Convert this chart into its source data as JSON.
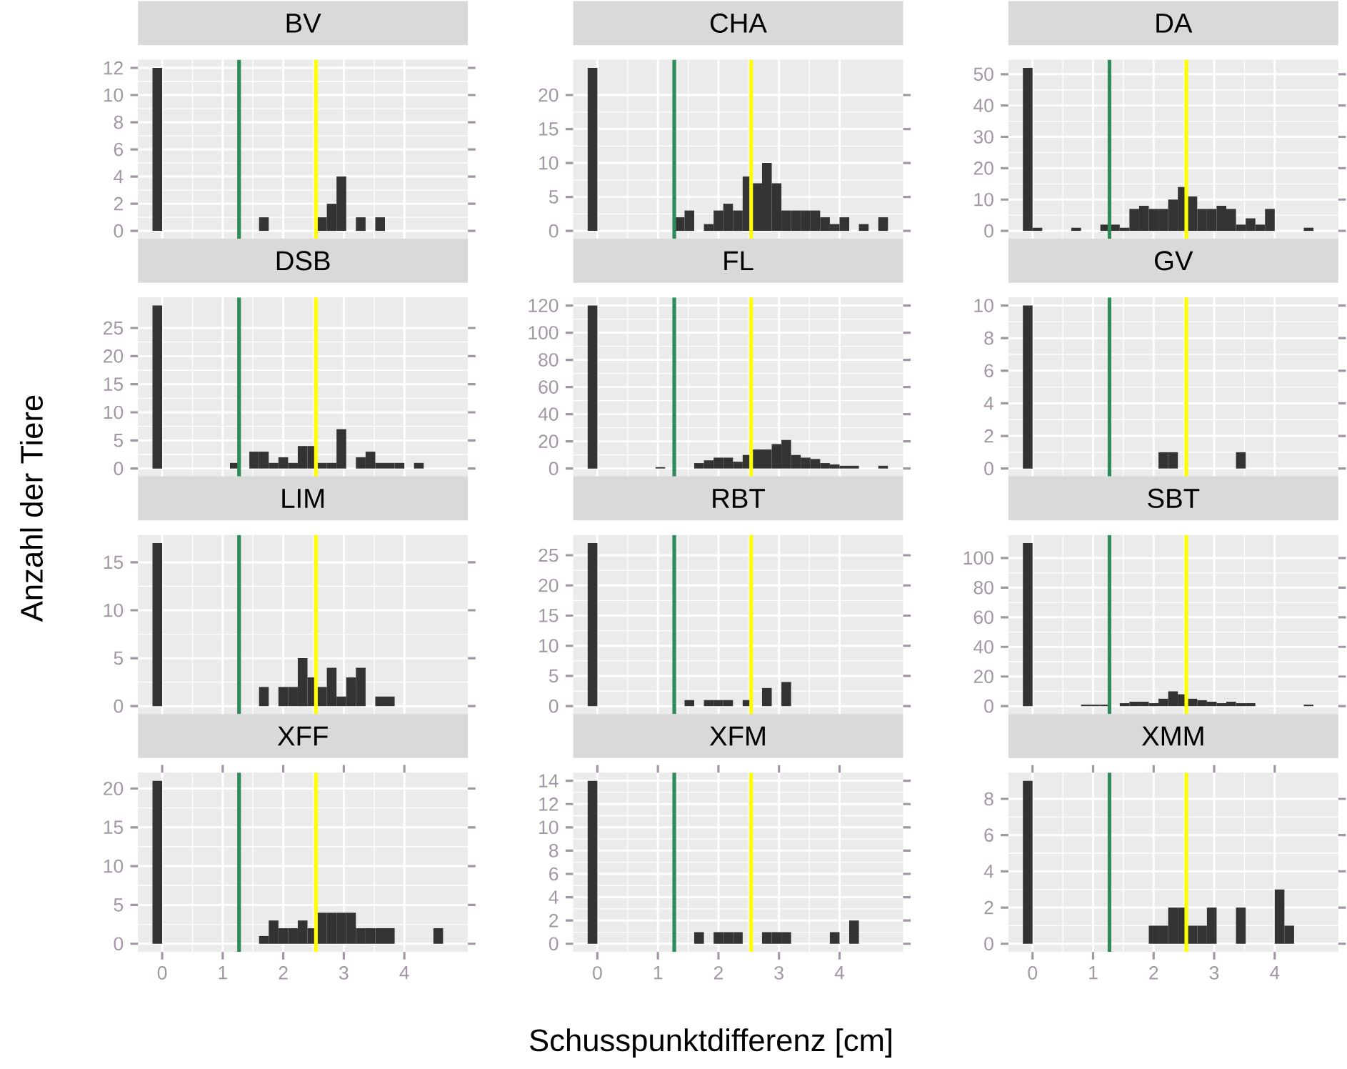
{
  "chart_data": [
    {
      "type": "histogram",
      "title": "BV",
      "bins": [
        -0.16,
        0,
        0.16,
        0.32,
        0.48,
        0.64,
        0.8,
        0.96,
        1.12,
        1.28,
        1.44,
        1.6,
        1.76,
        1.92,
        2.08,
        2.24,
        2.4,
        2.56,
        2.72,
        2.88,
        3.04,
        3.2,
        3.36,
        3.52,
        3.68,
        3.84,
        4,
        4.16,
        4.32,
        4.48,
        4.64,
        4.8
      ],
      "values": [
        12,
        0,
        0,
        0,
        0,
        0,
        0,
        0,
        0,
        0,
        0,
        1,
        0,
        0,
        0,
        0,
        0,
        1,
        2,
        4,
        0,
        1,
        0,
        1,
        0,
        0,
        0,
        0,
        0,
        0,
        0
      ],
      "color": "#333333",
      "xlim": [
        -0.4,
        5.05
      ],
      "ylim": [
        -0.6,
        12.6
      ],
      "xticks": [
        0,
        1,
        2,
        3,
        4
      ],
      "yticks": [
        0,
        2,
        4,
        6,
        8,
        10,
        12
      ],
      "grid": true,
      "tick_labels": "y",
      "ref_lines": [
        {
          "axis": "x",
          "value": 1.27,
          "color": "#2e8b57"
        },
        {
          "axis": "x",
          "value": 2.54,
          "color": "#ffff00"
        }
      ]
    },
    {
      "type": "histogram",
      "title": "CHA",
      "bins": [
        -0.16,
        0,
        0.16,
        0.32,
        0.48,
        0.64,
        0.8,
        0.96,
        1.12,
        1.28,
        1.44,
        1.6,
        1.76,
        1.92,
        2.08,
        2.24,
        2.4,
        2.56,
        2.72,
        2.88,
        3.04,
        3.2,
        3.36,
        3.52,
        3.68,
        3.84,
        4,
        4.16,
        4.32,
        4.48,
        4.64,
        4.8
      ],
      "values": [
        24,
        0,
        0,
        0,
        0,
        0,
        0,
        0,
        0,
        2,
        3,
        0,
        1,
        3,
        4,
        3,
        8,
        7,
        10,
        7,
        3,
        3,
        3,
        3,
        2,
        1,
        2,
        0,
        1,
        0,
        2
      ],
      "color": "#333333",
      "xlim": [
        -0.4,
        5.05
      ],
      "ylim": [
        -1.2,
        25.2
      ],
      "xticks": [
        0,
        1,
        2,
        3,
        4
      ],
      "yticks": [
        0,
        5,
        10,
        15,
        20
      ],
      "grid": true,
      "tick_labels": "y",
      "ref_lines": [
        {
          "axis": "x",
          "value": 1.27,
          "color": "#2e8b57"
        },
        {
          "axis": "x",
          "value": 2.54,
          "color": "#ffff00"
        }
      ]
    },
    {
      "type": "histogram",
      "title": "DA",
      "bins": [
        -0.16,
        0,
        0.16,
        0.32,
        0.48,
        0.64,
        0.8,
        0.96,
        1.12,
        1.28,
        1.44,
        1.6,
        1.76,
        1.92,
        2.08,
        2.24,
        2.4,
        2.56,
        2.72,
        2.88,
        3.04,
        3.2,
        3.36,
        3.52,
        3.68,
        3.84,
        4,
        4.16,
        4.32,
        4.48,
        4.64,
        4.8
      ],
      "values": [
        52,
        1,
        0,
        0,
        0,
        1,
        0,
        0,
        2,
        2,
        1,
        7,
        8,
        7,
        7,
        10,
        14,
        11,
        7,
        7,
        8,
        7,
        2,
        4,
        2,
        7,
        0,
        0,
        0,
        1,
        0
      ],
      "color": "#333333",
      "xlim": [
        -0.4,
        5.05
      ],
      "ylim": [
        -2.6,
        54.6
      ],
      "xticks": [
        0,
        1,
        2,
        3,
        4
      ],
      "yticks": [
        0,
        10,
        20,
        30,
        40,
        50
      ],
      "grid": true,
      "tick_labels": "y",
      "ref_lines": [
        {
          "axis": "x",
          "value": 1.27,
          "color": "#2e8b57"
        },
        {
          "axis": "x",
          "value": 2.54,
          "color": "#ffff00"
        }
      ]
    },
    {
      "type": "histogram",
      "title": "DSB",
      "ylabel": "Anzahl der Tiere",
      "bins": [
        -0.16,
        0,
        0.16,
        0.32,
        0.48,
        0.64,
        0.8,
        0.96,
        1.12,
        1.28,
        1.44,
        1.6,
        1.76,
        1.92,
        2.08,
        2.24,
        2.4,
        2.56,
        2.72,
        2.88,
        3.04,
        3.2,
        3.36,
        3.52,
        3.68,
        3.84,
        4,
        4.16,
        4.32,
        4.48,
        4.64,
        4.8
      ],
      "values": [
        29,
        0,
        0,
        0,
        0,
        0,
        0,
        0,
        1,
        0,
        3,
        3,
        1,
        2,
        1,
        4,
        4,
        1,
        1,
        7,
        0,
        2,
        3,
        1,
        1,
        1,
        0,
        1,
        0,
        0,
        0
      ],
      "color": "#333333",
      "xlim": [
        -0.4,
        5.05
      ],
      "ylim": [
        -1.45,
        30.45
      ],
      "xticks": [
        0,
        1,
        2,
        3,
        4
      ],
      "yticks": [
        0,
        5,
        10,
        15,
        20,
        25
      ],
      "grid": true,
      "tick_labels": "y",
      "ref_lines": [
        {
          "axis": "x",
          "value": 1.27,
          "color": "#2e8b57"
        },
        {
          "axis": "x",
          "value": 2.54,
          "color": "#ffff00"
        }
      ]
    },
    {
      "type": "histogram",
      "title": "FL",
      "bins": [
        -0.16,
        0,
        0.16,
        0.32,
        0.48,
        0.64,
        0.8,
        0.96,
        1.12,
        1.28,
        1.44,
        1.6,
        1.76,
        1.92,
        2.08,
        2.24,
        2.4,
        2.56,
        2.72,
        2.88,
        3.04,
        3.2,
        3.36,
        3.52,
        3.68,
        3.84,
        4,
        4.16,
        4.32,
        4.48,
        4.64,
        4.8
      ],
      "values": [
        120,
        0,
        0,
        0,
        0,
        0,
        0,
        1,
        0,
        0,
        0,
        4,
        6,
        8,
        8,
        5,
        10,
        14,
        14,
        18,
        21,
        10,
        8,
        7,
        4,
        3,
        2,
        2,
        0,
        0,
        2
      ],
      "color": "#333333",
      "xlim": [
        -0.4,
        5.05
      ],
      "ylim": [
        -6,
        126
      ],
      "xticks": [
        0,
        1,
        2,
        3,
        4
      ],
      "yticks": [
        0,
        20,
        40,
        60,
        80,
        100,
        120
      ],
      "grid": true,
      "tick_labels": "y",
      "ref_lines": [
        {
          "axis": "x",
          "value": 1.27,
          "color": "#2e8b57"
        },
        {
          "axis": "x",
          "value": 2.54,
          "color": "#ffff00"
        }
      ]
    },
    {
      "type": "histogram",
      "title": "GV",
      "bins": [
        -0.16,
        0,
        0.16,
        0.32,
        0.48,
        0.64,
        0.8,
        0.96,
        1.12,
        1.28,
        1.44,
        1.6,
        1.76,
        1.92,
        2.08,
        2.24,
        2.4,
        2.56,
        2.72,
        2.88,
        3.04,
        3.2,
        3.36,
        3.52,
        3.68,
        3.84,
        4,
        4.16,
        4.32,
        4.48,
        4.64,
        4.8
      ],
      "values": [
        10,
        0,
        0,
        0,
        0,
        0,
        0,
        0,
        0,
        0,
        0,
        0,
        0,
        0,
        1,
        1,
        0,
        0,
        0,
        0,
        0,
        0,
        1,
        0,
        0,
        0,
        0,
        0,
        0,
        0,
        0
      ],
      "color": "#333333",
      "xlim": [
        -0.4,
        5.05
      ],
      "ylim": [
        -0.5,
        10.5
      ],
      "xticks": [
        0,
        1,
        2,
        3,
        4
      ],
      "yticks": [
        0,
        2,
        4,
        6,
        8,
        10
      ],
      "grid": true,
      "tick_labels": "y",
      "ref_lines": [
        {
          "axis": "x",
          "value": 1.27,
          "color": "#2e8b57"
        },
        {
          "axis": "x",
          "value": 2.54,
          "color": "#ffff00"
        }
      ]
    },
    {
      "type": "histogram",
      "title": "LIM",
      "bins": [
        -0.16,
        0,
        0.16,
        0.32,
        0.48,
        0.64,
        0.8,
        0.96,
        1.12,
        1.28,
        1.44,
        1.6,
        1.76,
        1.92,
        2.08,
        2.24,
        2.4,
        2.56,
        2.72,
        2.88,
        3.04,
        3.2,
        3.36,
        3.52,
        3.68,
        3.84,
        4,
        4.16,
        4.32,
        4.48,
        4.64,
        4.8
      ],
      "values": [
        17,
        0,
        0,
        0,
        0,
        0,
        0,
        0,
        0,
        0,
        0,
        2,
        0,
        2,
        2,
        5,
        3,
        2,
        4,
        1,
        3,
        4,
        0,
        1,
        1,
        0,
        0,
        0,
        0,
        0,
        0
      ],
      "color": "#333333",
      "xlim": [
        -0.4,
        5.05
      ],
      "ylim": [
        -0.85,
        17.85
      ],
      "xticks": [
        0,
        1,
        2,
        3,
        4
      ],
      "yticks": [
        0,
        5,
        10,
        15
      ],
      "grid": true,
      "tick_labels": "y",
      "ref_lines": [
        {
          "axis": "x",
          "value": 1.27,
          "color": "#2e8b57"
        },
        {
          "axis": "x",
          "value": 2.54,
          "color": "#ffff00"
        }
      ]
    },
    {
      "type": "histogram",
      "title": "RBT",
      "bins": [
        -0.16,
        0,
        0.16,
        0.32,
        0.48,
        0.64,
        0.8,
        0.96,
        1.12,
        1.28,
        1.44,
        1.6,
        1.76,
        1.92,
        2.08,
        2.24,
        2.4,
        2.56,
        2.72,
        2.88,
        3.04,
        3.2,
        3.36,
        3.52,
        3.68,
        3.84,
        4,
        4.16,
        4.32,
        4.48,
        4.64,
        4.8
      ],
      "values": [
        27,
        0,
        0,
        0,
        0,
        0,
        0,
        0,
        0,
        0,
        1,
        0,
        1,
        1,
        1,
        0,
        1,
        0,
        3,
        0,
        4,
        0,
        0,
        0,
        0,
        0,
        0,
        0,
        0,
        0,
        0
      ],
      "color": "#333333",
      "xlim": [
        -0.4,
        5.05
      ],
      "ylim": [
        -1.35,
        28.35
      ],
      "xticks": [
        0,
        1,
        2,
        3,
        4
      ],
      "yticks": [
        0,
        5,
        10,
        15,
        20,
        25
      ],
      "grid": true,
      "tick_labels": "y",
      "ref_lines": [
        {
          "axis": "x",
          "value": 1.27,
          "color": "#2e8b57"
        },
        {
          "axis": "x",
          "value": 2.54,
          "color": "#ffff00"
        }
      ]
    },
    {
      "type": "histogram",
      "title": "SBT",
      "bins": [
        -0.16,
        0,
        0.16,
        0.32,
        0.48,
        0.64,
        0.8,
        0.96,
        1.12,
        1.28,
        1.44,
        1.6,
        1.76,
        1.92,
        2.08,
        2.24,
        2.4,
        2.56,
        2.72,
        2.88,
        3.04,
        3.2,
        3.36,
        3.52,
        3.68,
        3.84,
        4,
        4.16,
        4.32,
        4.48,
        4.64,
        4.8
      ],
      "values": [
        110,
        0,
        0,
        0,
        0,
        0,
        1,
        1,
        1,
        0,
        2,
        3,
        3,
        2,
        5,
        10,
        8,
        5,
        4,
        3,
        2,
        3,
        2,
        2,
        0,
        0,
        0,
        0,
        0,
        1,
        0
      ],
      "color": "#333333",
      "xlim": [
        -0.4,
        5.05
      ],
      "ylim": [
        -5.5,
        115.5
      ],
      "xticks": [
        0,
        1,
        2,
        3,
        4
      ],
      "yticks": [
        0,
        20,
        40,
        60,
        80,
        100
      ],
      "grid": true,
      "tick_labels": "y",
      "ref_lines": [
        {
          "axis": "x",
          "value": 1.27,
          "color": "#2e8b57"
        },
        {
          "axis": "x",
          "value": 2.54,
          "color": "#ffff00"
        }
      ]
    },
    {
      "type": "histogram",
      "title": "XFF",
      "bins": [
        -0.16,
        0,
        0.16,
        0.32,
        0.48,
        0.64,
        0.8,
        0.96,
        1.12,
        1.28,
        1.44,
        1.6,
        1.76,
        1.92,
        2.08,
        2.24,
        2.4,
        2.56,
        2.72,
        2.88,
        3.04,
        3.2,
        3.36,
        3.52,
        3.68,
        3.84,
        4,
        4.16,
        4.32,
        4.48,
        4.64,
        4.8
      ],
      "values": [
        21,
        0,
        0,
        0,
        0,
        0,
        0,
        0,
        0,
        0,
        0,
        1,
        3,
        2,
        2,
        3,
        2,
        4,
        4,
        4,
        4,
        2,
        2,
        2,
        2,
        0,
        0,
        0,
        0,
        2,
        0
      ],
      "color": "#333333",
      "xlim": [
        -0.4,
        5.05
      ],
      "ylim": [
        -1.05,
        22.05
      ],
      "xticks": [
        0,
        1,
        2,
        3,
        4
      ],
      "yticks": [
        0,
        5,
        10,
        15,
        20
      ],
      "grid": true,
      "ref_lines": [
        {
          "axis": "x",
          "value": 1.27,
          "color": "#2e8b57"
        },
        {
          "axis": "x",
          "value": 2.54,
          "color": "#ffff00"
        }
      ]
    },
    {
      "type": "histogram",
      "title": "XFM",
      "xlabel": "Schusspunktdifferenz [cm]",
      "bins": [
        -0.16,
        0,
        0.16,
        0.32,
        0.48,
        0.64,
        0.8,
        0.96,
        1.12,
        1.28,
        1.44,
        1.6,
        1.76,
        1.92,
        2.08,
        2.24,
        2.4,
        2.56,
        2.72,
        2.88,
        3.04,
        3.2,
        3.36,
        3.52,
        3.68,
        3.84,
        4,
        4.16,
        4.32,
        4.48,
        4.64,
        4.8
      ],
      "values": [
        14,
        0,
        0,
        0,
        0,
        0,
        0,
        0,
        0,
        0,
        0,
        1,
        0,
        1,
        1,
        1,
        0,
        0,
        1,
        1,
        1,
        0,
        0,
        0,
        0,
        1,
        0,
        2,
        0,
        0,
        0
      ],
      "color": "#333333",
      "xlim": [
        -0.4,
        5.05
      ],
      "ylim": [
        -0.7,
        14.7
      ],
      "xticks": [
        0,
        1,
        2,
        3,
        4
      ],
      "yticks": [
        0,
        2,
        4,
        6,
        8,
        10,
        12,
        14
      ],
      "grid": true,
      "ref_lines": [
        {
          "axis": "x",
          "value": 1.27,
          "color": "#2e8b57"
        },
        {
          "axis": "x",
          "value": 2.54,
          "color": "#ffff00"
        }
      ]
    },
    {
      "type": "histogram",
      "title": "XMM",
      "bins": [
        -0.16,
        0,
        0.16,
        0.32,
        0.48,
        0.64,
        0.8,
        0.96,
        1.12,
        1.28,
        1.44,
        1.6,
        1.76,
        1.92,
        2.08,
        2.24,
        2.4,
        2.56,
        2.72,
        2.88,
        3.04,
        3.2,
        3.36,
        3.52,
        3.68,
        3.84,
        4,
        4.16,
        4.32,
        4.48,
        4.64,
        4.8
      ],
      "values": [
        9,
        0,
        0,
        0,
        0,
        0,
        0,
        0,
        0,
        0,
        0,
        0,
        0,
        1,
        1,
        2,
        2,
        1,
        1,
        2,
        0,
        0,
        2,
        0,
        0,
        0,
        3,
        1,
        0,
        0,
        0
      ],
      "color": "#333333",
      "xlim": [
        -0.4,
        5.05
      ],
      "ylim": [
        -0.45,
        9.45
      ],
      "xticks": [
        0,
        1,
        2,
        3,
        4
      ],
      "yticks": [
        0,
        2,
        4,
        6,
        8
      ],
      "grid": true,
      "ref_lines": [
        {
          "axis": "x",
          "value": 1.27,
          "color": "#2e8b57"
        },
        {
          "axis": "x",
          "value": 2.54,
          "color": "#ffff00"
        }
      ]
    }
  ]
}
